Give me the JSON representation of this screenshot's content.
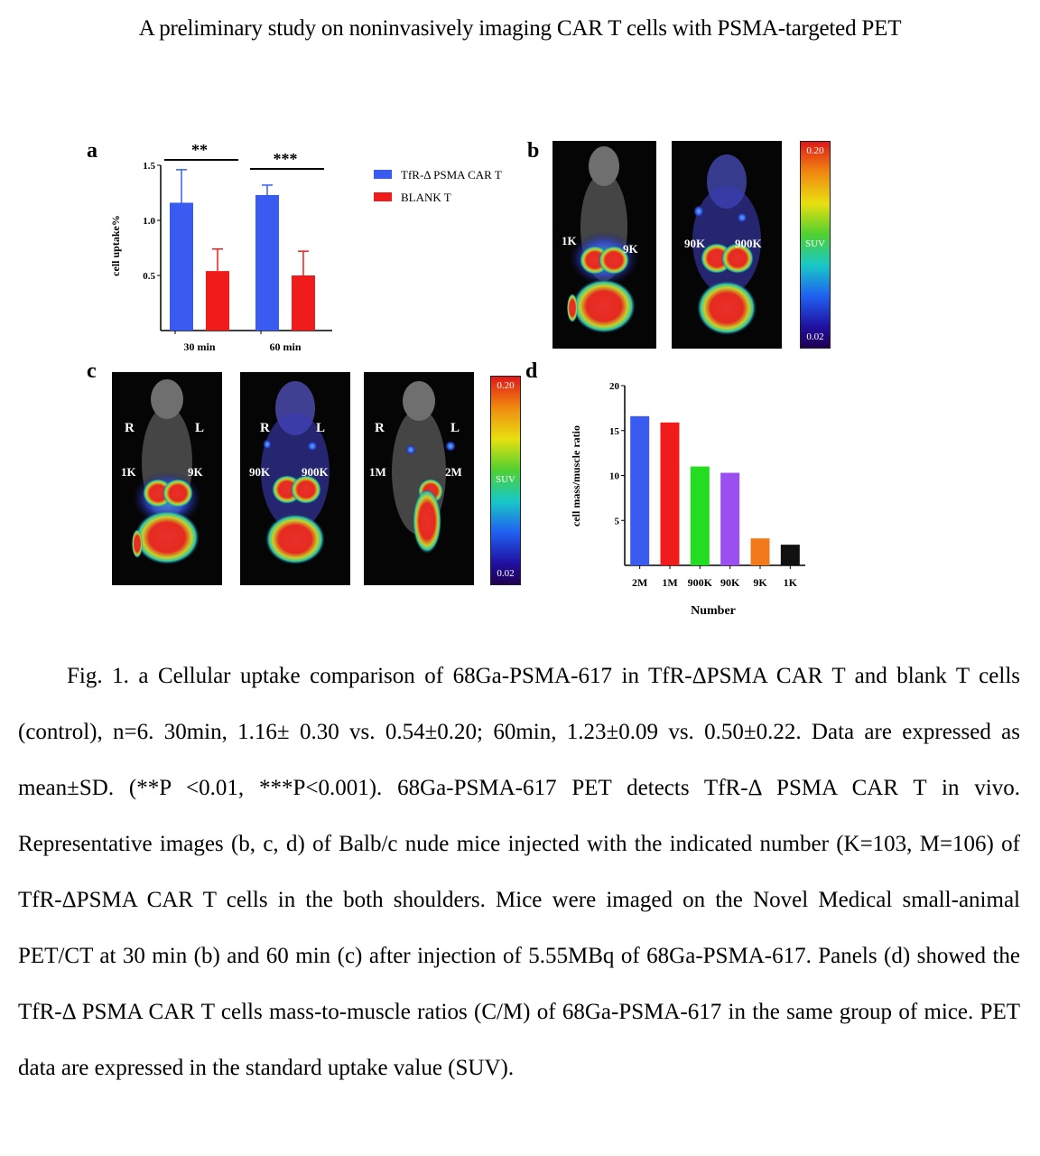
{
  "title": "A preliminary study on noninvasively imaging CAR T cells with PSMA-targeted PET",
  "panels": {
    "a": "a",
    "b": "b",
    "c": "c",
    "d": "d"
  },
  "chart_a": {
    "type": "bar",
    "ylabel": "cell uptake%",
    "categories": [
      "30 min",
      "60 min"
    ],
    "yticks": [
      "0.5",
      "1.0",
      "1.5"
    ],
    "sig": [
      "**",
      "***"
    ],
    "legend": [
      "TfR-Δ PSMA CAR T",
      "BLANK T"
    ]
  },
  "chart_d": {
    "type": "bar",
    "ylabel": "cell mass/muscle ratio",
    "xlabel": "Number",
    "categories": [
      "2M",
      "1M",
      "900K",
      "90K",
      "9K",
      "1K"
    ],
    "yticks": [
      "5",
      "10",
      "15",
      "20"
    ]
  },
  "chart_data": [
    {
      "type": "bar",
      "categories": [
        "30 min",
        "60 min"
      ],
      "series": [
        {
          "name": "TfR-Δ PSMA CAR T",
          "values": [
            1.16,
            1.23
          ],
          "error": [
            0.3,
            0.09
          ],
          "color": "#3a5bf0"
        },
        {
          "name": "BLANK T",
          "values": [
            0.54,
            0.5
          ],
          "error": [
            0.2,
            0.22
          ],
          "color": "#f01c1c"
        }
      ],
      "ylabel": "cell uptake%",
      "ylim": [
        0,
        1.5
      ],
      "significance": [
        "**",
        "***"
      ]
    },
    {
      "type": "bar",
      "categories": [
        "2M",
        "1M",
        "900K",
        "90K",
        "9K",
        "1K"
      ],
      "values": [
        16.6,
        15.9,
        11.0,
        10.3,
        3.0,
        2.3
      ],
      "colors": [
        "#3a5bf0",
        "#f01c1c",
        "#22dd22",
        "#9b4ff0",
        "#f07a1c",
        "#111111"
      ],
      "xlabel": "Number",
      "ylabel": "cell mass/muscle ratio",
      "ylim": [
        0,
        20
      ]
    }
  ],
  "pet_b": {
    "image1": {
      "left": "1K",
      "right": "9K"
    },
    "image2": {
      "left": "90K",
      "right": "900K"
    },
    "scale": {
      "max": "0.20",
      "mid": "SUV",
      "min": "0.02"
    }
  },
  "pet_c": {
    "image1": {
      "r": "R",
      "l": "L",
      "left": "1K",
      "right": "9K"
    },
    "image2": {
      "r": "R",
      "l": "L",
      "left": "90K",
      "right": "900K"
    },
    "image3": {
      "r": "R",
      "l": "L",
      "left": "1M",
      "right": "2M"
    },
    "scale": {
      "max": "0.20",
      "mid": "SUV",
      "min": "0.02"
    }
  },
  "caption": [
    "Fig. 1. a Cellular uptake comparison of 68Ga-PSMA-617 in TfR-ΔPSMA CAR T and blank T cells (control), n=6. 30min, 1.16± 0.30 vs. 0.54±0.20; 60min, 1.23±0.09 vs. 0.50±0.22. Data are expressed as mean±SD. (**P <0.01, ***P<0.001). 68Ga-PSMA-617 PET detects TfR-Δ PSMA CAR T in vivo. Representative images (b, c, d) of Balb/c nude mice injected with the indicated number (K=103, M=106) of TfR-ΔPSMA CAR T cells in the both shoulders. Mice were imaged on the Novel Medical small-animal PET/CT at 30 min (b) and 60 min (c) after injection of 5.55MBq of 68Ga-PSMA-617. Panels (d) showed the TfR-Δ PSMA CAR T cells mass-to-muscle ratios (C/M) of 68Ga-PSMA-617 in the same group of mice. PET data are expressed in the standard uptake value (SUV)."
  ]
}
